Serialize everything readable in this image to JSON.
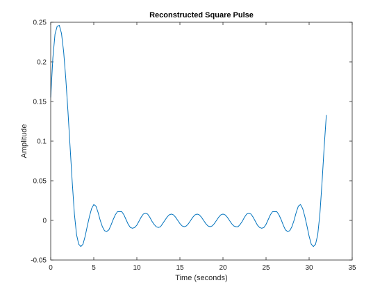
{
  "chart_data": {
    "type": "line",
    "title": "Reconstructed Square Pulse",
    "xlabel": "Time (seconds)",
    "ylabel": "Amplitude",
    "xlim": [
      0,
      35
    ],
    "ylim": [
      -0.05,
      0.25
    ],
    "xticks": [
      0,
      5,
      10,
      15,
      20,
      25,
      30,
      35
    ],
    "yticks": [
      -0.05,
      0,
      0.05,
      0.1,
      0.15,
      0.2,
      0.25
    ],
    "xtick_labels": [
      "0",
      "5",
      "10",
      "15",
      "20",
      "25",
      "30",
      "35"
    ],
    "ytick_labels": [
      "-0.05",
      "0",
      "0.05",
      "0.1",
      "0.15",
      "0.2",
      "0.25"
    ],
    "grid": false,
    "series_color": "#0072bd",
    "series": [
      {
        "x": [
          0,
          0.25,
          0.5,
          0.75,
          1.0,
          1.25,
          1.5,
          1.75,
          2.0,
          2.25,
          2.5,
          2.75,
          3.0,
          3.25,
          3.5,
          3.75,
          4.0,
          4.25,
          4.5,
          4.75,
          5.0,
          5.25,
          5.5,
          5.75,
          6.0,
          6.25,
          6.5,
          6.75,
          7.0,
          7.25,
          7.5,
          7.75,
          8.0,
          8.25,
          8.5,
          8.75,
          9.0,
          9.25,
          9.5,
          9.75,
          10.0,
          10.25,
          10.5,
          10.75,
          11.0,
          11.25,
          11.5,
          11.75,
          12.0,
          12.25,
          12.5,
          12.75,
          13.0,
          13.25,
          13.5,
          13.75,
          14.0,
          14.25,
          14.5,
          14.75,
          15.0,
          15.25,
          15.5,
          15.75,
          16.0,
          16.25,
          16.5,
          16.75,
          17.0,
          17.25,
          17.5,
          17.75,
          18.0,
          18.25,
          18.5,
          18.75,
          19.0,
          19.25,
          19.5,
          19.75,
          20.0,
          20.25,
          20.5,
          20.75,
          21.0,
          21.25,
          21.5,
          21.75,
          22.0,
          22.25,
          22.5,
          22.75,
          23.0,
          23.25,
          23.5,
          23.75,
          24.0,
          24.25,
          24.5,
          24.75,
          25.0,
          25.25,
          25.5,
          25.75,
          26.0,
          26.25,
          26.5,
          26.75,
          27.0,
          27.25,
          27.5,
          27.75,
          28.0,
          28.25,
          28.5,
          28.75,
          29.0,
          29.25,
          29.5,
          29.75,
          30.0,
          30.25,
          30.5,
          30.75,
          31.0,
          31.25,
          31.5,
          31.75,
          32.0
        ],
        "y": [
          0.155,
          0.205,
          0.235,
          0.245,
          0.246,
          0.236,
          0.213,
          0.179,
          0.138,
          0.093,
          0.048,
          0.008,
          -0.018,
          -0.03,
          -0.033,
          -0.03,
          -0.02,
          -0.007,
          0.005,
          0.015,
          0.02,
          0.018,
          0.01,
          0.0,
          -0.008,
          -0.013,
          -0.014,
          -0.012,
          -0.006,
          0.001,
          0.007,
          0.011,
          0.011,
          0.011,
          0.007,
          0.001,
          -0.005,
          -0.009,
          -0.01,
          -0.009,
          -0.006,
          -0.001,
          0.004,
          0.008,
          0.009,
          0.008,
          0.004,
          -0.001,
          -0.005,
          -0.008,
          -0.009,
          -0.008,
          -0.004,
          0.0,
          0.004,
          0.007,
          0.008,
          0.007,
          0.004,
          0.0,
          -0.004,
          -0.007,
          -0.008,
          -0.007,
          -0.004,
          0.0,
          0.004,
          0.007,
          0.008,
          0.007,
          0.004,
          0.0,
          -0.004,
          -0.007,
          -0.008,
          -0.007,
          -0.004,
          0.0,
          0.004,
          0.007,
          0.008,
          0.007,
          0.004,
          0.0,
          -0.004,
          -0.007,
          -0.008,
          -0.008,
          -0.005,
          -0.001,
          0.004,
          0.008,
          0.009,
          0.008,
          0.004,
          -0.001,
          -0.006,
          -0.009,
          -0.01,
          -0.009,
          -0.005,
          0.001,
          0.007,
          0.011,
          0.011,
          0.011,
          0.007,
          0.001,
          -0.006,
          -0.012,
          -0.014,
          -0.013,
          -0.008,
          0.0,
          0.01,
          0.018,
          0.02,
          0.015,
          0.005,
          -0.007,
          -0.02,
          -0.03,
          -0.033,
          -0.03,
          -0.018,
          0.008,
          0.048,
          0.093,
          0.133
        ]
      }
    ]
  }
}
